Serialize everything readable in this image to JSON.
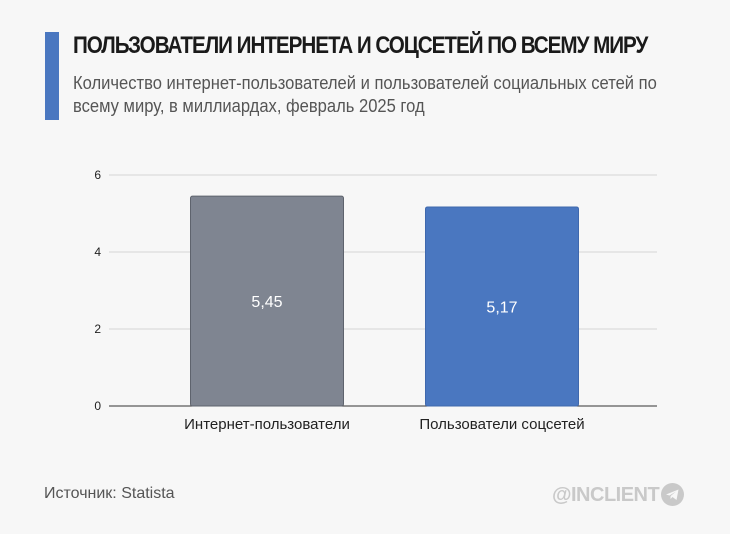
{
  "header": {
    "title": "ПОЛЬЗОВАТЕЛИ ИНТЕРНЕТА И СОЦСЕТЕЙ ПО ВСЕМУ МИРУ",
    "subtitle": "Количество интернет-пользователей и пользователей социальных сетей по всему миру, в миллиардах, февраль 2025 год"
  },
  "chart_data": {
    "type": "bar",
    "categories": [
      "Интернет-пользователи",
      "Пользователи соцсетей"
    ],
    "values": [
      5.45,
      5.17
    ],
    "data_labels": [
      "5,45",
      "5,17"
    ],
    "colors": [
      "#7f8591",
      "#4a77c0"
    ],
    "ylim": [
      0,
      6
    ],
    "yticks": [
      0,
      2,
      4,
      6
    ],
    "grid": true,
    "xlabel": "",
    "ylabel": ""
  },
  "footer": {
    "source": "Источник: Statista",
    "brand": "@INCLIENT",
    "brand_icon": "telegram-icon"
  },
  "colors": {
    "accent": "#4a77c0",
    "background": "#f7f7f7"
  }
}
